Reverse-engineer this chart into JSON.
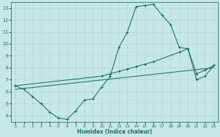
{
  "xlabel": "Humidex (Indice chaleur)",
  "xlim": [
    -0.5,
    23.5
  ],
  "ylim": [
    3.5,
    13.5
  ],
  "xticks": [
    0,
    1,
    2,
    3,
    4,
    5,
    6,
    7,
    8,
    9,
    10,
    11,
    12,
    13,
    14,
    15,
    16,
    17,
    18,
    19,
    20,
    21,
    22,
    23
  ],
  "yticks": [
    4,
    5,
    6,
    7,
    8,
    9,
    10,
    11,
    12,
    13
  ],
  "bg_color": "#c5e8e5",
  "line_color": "#1e6e63",
  "grid_color": "#b0d5d0",
  "line1_x": [
    0,
    1,
    2,
    3,
    4,
    5,
    6,
    7,
    8,
    9,
    10,
    11,
    12,
    13,
    14,
    15,
    16,
    17,
    18,
    19,
    20,
    21,
    22,
    23
  ],
  "line1_y": [
    6.5,
    6.2,
    5.6,
    5.0,
    4.3,
    3.8,
    3.7,
    4.4,
    5.3,
    5.4,
    6.4,
    7.3,
    9.7,
    11.0,
    13.1,
    13.2,
    13.3,
    12.4,
    11.6,
    9.7,
    9.6,
    7.0,
    7.3,
    8.2
  ],
  "line2_x": [
    0,
    10,
    11,
    12,
    13,
    14,
    15,
    16,
    19,
    20,
    21,
    22,
    23
  ],
  "line2_y": [
    6.5,
    7.3,
    7.5,
    7.7,
    7.9,
    8.1,
    8.3,
    8.5,
    9.3,
    9.6,
    7.5,
    7.8,
    8.2
  ],
  "line3_x": [
    0,
    23
  ],
  "line3_y": [
    6.2,
    8.0
  ]
}
